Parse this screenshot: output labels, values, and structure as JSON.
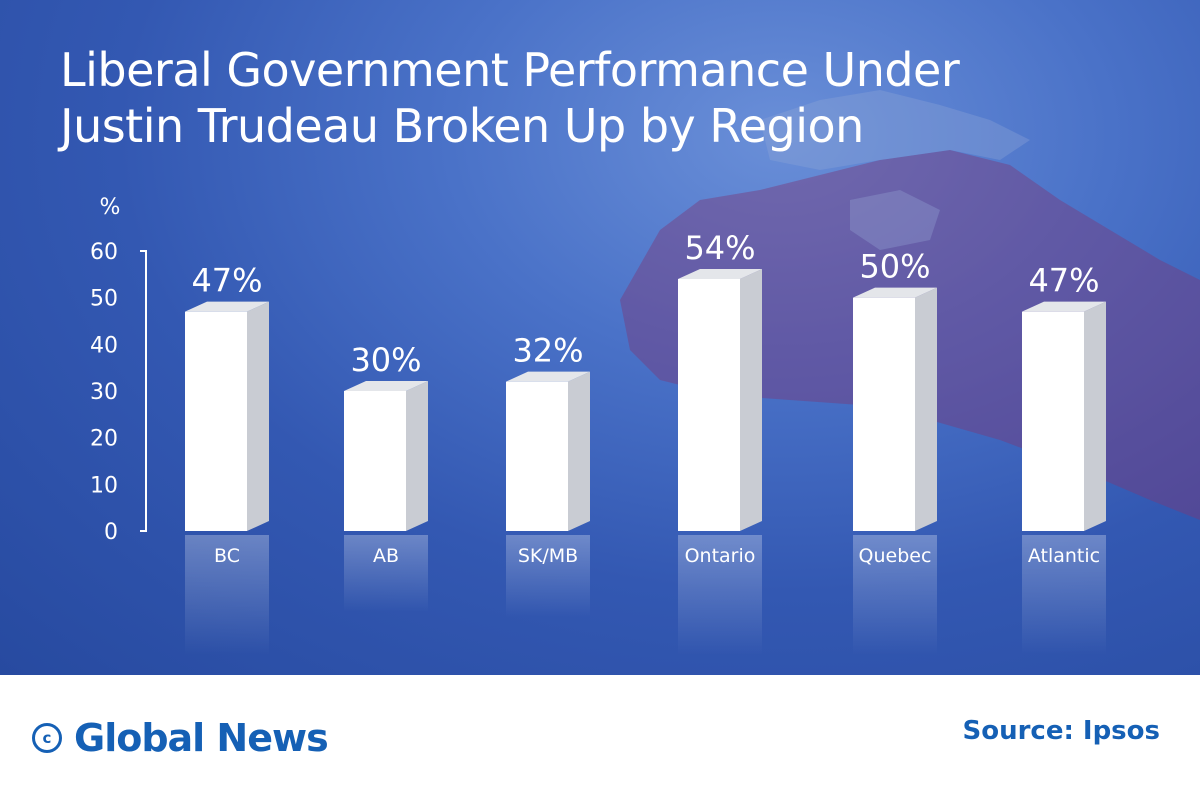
{
  "title": "Liberal Government Performance Under Justin Trudeau Broken Up by Region",
  "brand": {
    "name": "Global News",
    "icon": "copyright-icon"
  },
  "source": "Source: Ipsos",
  "colors": {
    "background": "#3358b2",
    "bar_front": "#ffffff",
    "bar_side": "#c9ccd3",
    "brand": "#1560b5",
    "map_red": "#7a3a7a"
  },
  "chart_data": {
    "type": "bar",
    "title": "Liberal Government Performance Under Justin Trudeau Broken Up by Region",
    "ylabel": "%",
    "xlabel": "",
    "categories": [
      "BC",
      "AB",
      "SK/MB",
      "Ontario",
      "Quebec",
      "Atlantic"
    ],
    "values": [
      47,
      30,
      32,
      54,
      50,
      47
    ],
    "value_labels": [
      "47%",
      "30%",
      "32%",
      "54%",
      "50%",
      "47%"
    ],
    "ylim": [
      0,
      60
    ],
    "yticks": [
      0,
      10,
      20,
      30,
      40,
      50,
      60
    ],
    "grid": false,
    "style": "3d-bars-with-reflection"
  }
}
